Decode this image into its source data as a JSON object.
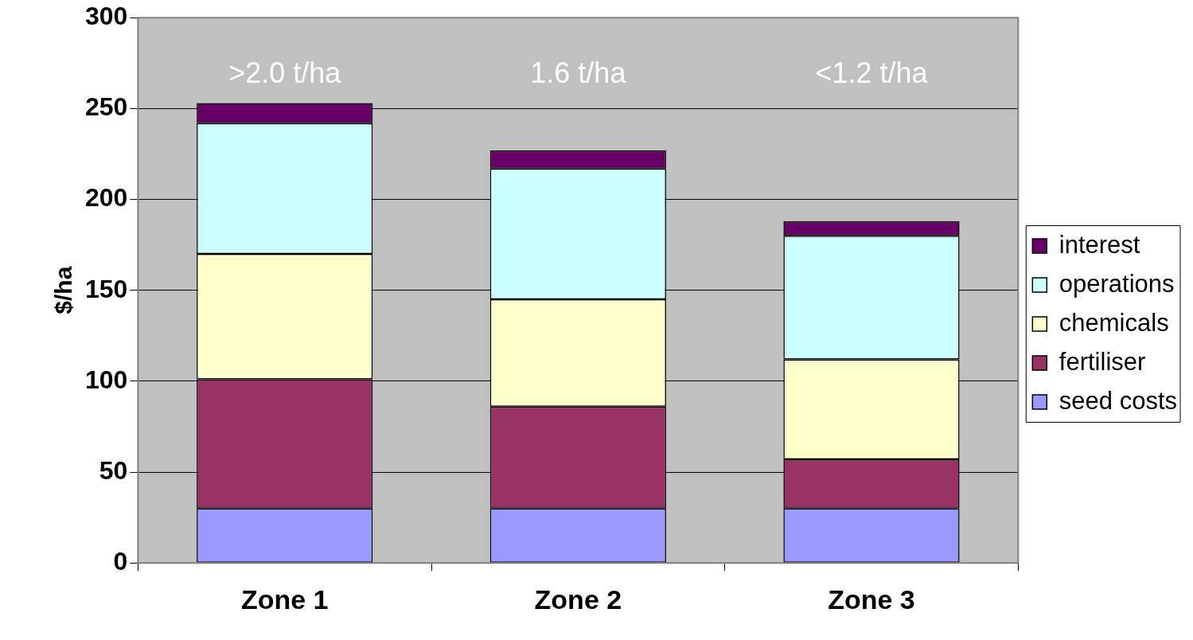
{
  "chart_data": {
    "type": "bar",
    "stacked": true,
    "ylabel": "$/ha",
    "categories": [
      "Zone 1",
      "Zone 2",
      "Zone 3"
    ],
    "series": [
      {
        "name": "seed costs",
        "color": "#9999ff",
        "values": [
          30,
          30,
          30
        ]
      },
      {
        "name": "fertiliser",
        "color": "#993366",
        "values": [
          71,
          56,
          27
        ]
      },
      {
        "name": "chemicals",
        "color": "#ffffcc",
        "values": [
          69,
          59,
          55
        ]
      },
      {
        "name": "operations",
        "color": "#ccffff",
        "values": [
          72,
          72,
          68
        ]
      },
      {
        "name": "interest",
        "color": "#660066",
        "values": [
          11,
          10,
          8
        ]
      }
    ],
    "ylim": [
      0,
      300
    ],
    "yticks": [
      0,
      50,
      100,
      150,
      200,
      250,
      300
    ],
    "grid": "y",
    "legend": "right",
    "annotations": [
      ">2.0 t/ha",
      "1.6 t/ha",
      "<1.2 t/ha"
    ]
  }
}
